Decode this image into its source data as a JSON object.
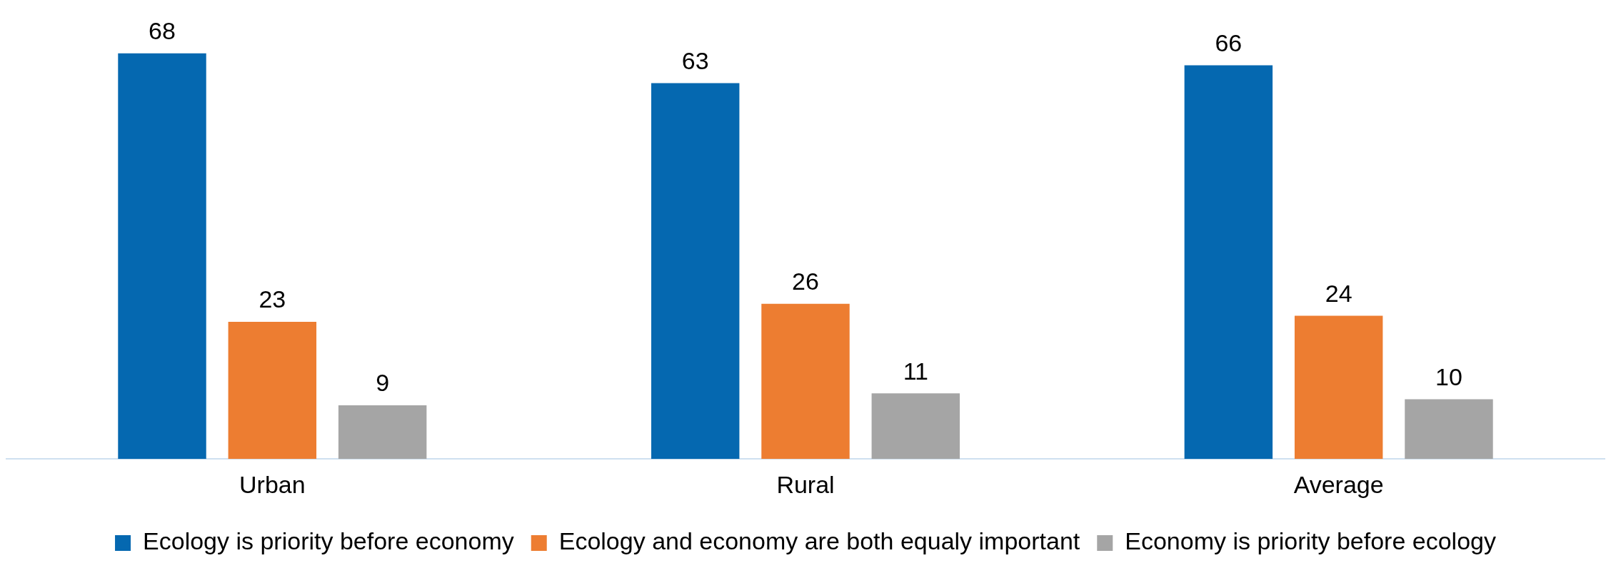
{
  "chart_data": {
    "type": "bar",
    "categories": [
      "Urban",
      "Rural",
      "Average"
    ],
    "series": [
      {
        "name": "Ecology is priority before economy",
        "color": "#0568b0",
        "values": [
          68,
          63,
          66
        ]
      },
      {
        "name": "Ecology and economy are both equaly important",
        "color": "#ed7d31",
        "values": [
          23,
          26,
          24
        ]
      },
      {
        "name": "Economy is priority before ecology",
        "color": "#a5a5a5",
        "values": [
          9,
          11,
          10
        ]
      }
    ],
    "data_labels": true,
    "grid": false,
    "legend": "bottom"
  }
}
